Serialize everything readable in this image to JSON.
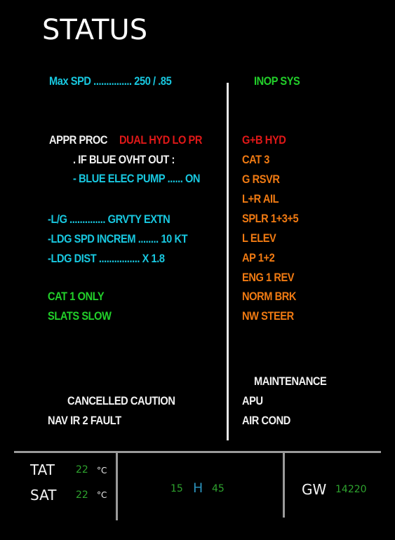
{
  "title": "STATUS",
  "left": {
    "max_spd": "Max SPD ............... 250 / .85",
    "appr_proc": "APPR PROC",
    "appr_alert": "DUAL HYD LO PR",
    "if_blue": ". IF BLUE OVHT OUT :",
    "blue_pump": "- BLUE ELEC PUMP ...... ON",
    "lg": "-L/G .............. GRVTY EXTN",
    "ldg_spd": "-LDG SPD INCREM ........ 10 KT",
    "ldg_dist": "-LDG DIST ................ X 1.8",
    "cat1": "CAT 1 ONLY",
    "slats": "SLATS SLOW",
    "cancelled": "CANCELLED CAUTION",
    "nav_fault": "NAV IR 2 FAULT"
  },
  "right": {
    "inop_header": "INOP SYS",
    "inop_items": [
      "G+B HYD",
      "CAT 3",
      "G RSVR",
      "L+R AIL",
      "SPLR 1+3+5",
      "L ELEV",
      "AP 1+2",
      "ENG 1 REV",
      "NORM BRK",
      "NW STEER"
    ],
    "maintenance_header": "MAINTENANCE",
    "maintenance_items": [
      "APU",
      "AIR COND"
    ]
  },
  "footer": {
    "tat_label": "TAT",
    "tat_value": "22",
    "sat_label": "SAT",
    "sat_value": "22",
    "temp_unit": "°C",
    "time_hours": "15",
    "time_sep": "H",
    "time_minutes": "45",
    "gw_label": "GW",
    "gw_value": "14220"
  },
  "colors": {
    "cyan": "#18c8e0",
    "white": "#f2f2f2",
    "red": "#e01818",
    "amber": "#f07a12",
    "green": "#22d02a"
  }
}
